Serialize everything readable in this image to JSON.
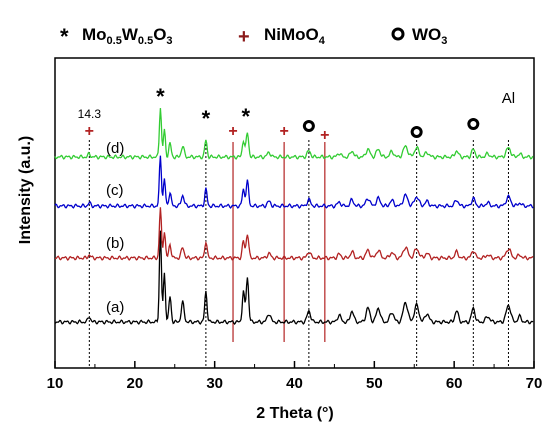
{
  "chart_data": {
    "type": "line",
    "xlabel": "2 Theta (°)",
    "ylabel": "Intensity (a.u.)",
    "xlim": [
      10,
      70
    ],
    "xticks": [
      "10",
      "20",
      "30",
      "40",
      "50",
      "60",
      "70"
    ],
    "legend": [
      {
        "symbol": "*",
        "label_main": "Mo",
        "sub1": "0.5",
        "mid": "W",
        "sub2": "0.5",
        "mid2": "O",
        "sub3": "3",
        "color": "#000000"
      },
      {
        "symbol": "+",
        "label_main": "NiMoO",
        "sub1": "4",
        "color": "#8b1a1a"
      },
      {
        "symbol": "o",
        "label_main": "WO",
        "sub1": "3",
        "color": "#000000"
      }
    ],
    "series": [
      {
        "label": "(a)",
        "color": "#000000",
        "baseline": 0.0
      },
      {
        "label": "(b)",
        "color": "#b22222",
        "baseline": 0.32
      },
      {
        "label": "(c)",
        "color": "#0000cc",
        "baseline": 0.44
      },
      {
        "label": "(d)",
        "color": "#33cc33",
        "baseline": 0.58
      }
    ],
    "markers": {
      "star": [
        23.2,
        28.9,
        33.9
      ],
      "plus": [
        14.3,
        32.3,
        38.7,
        43.8
      ],
      "circle": [
        41.8,
        55.3,
        62.4
      ],
      "al": [
        66.8
      ]
    },
    "annotations": {
      "peak_label": "14.3",
      "al_label": "Al"
    },
    "reference_lines": {
      "dotted": [
        14.3,
        28.9,
        41.8,
        55.3,
        62.4,
        66.8
      ],
      "red": [
        32.3,
        38.7,
        43.8
      ]
    }
  }
}
